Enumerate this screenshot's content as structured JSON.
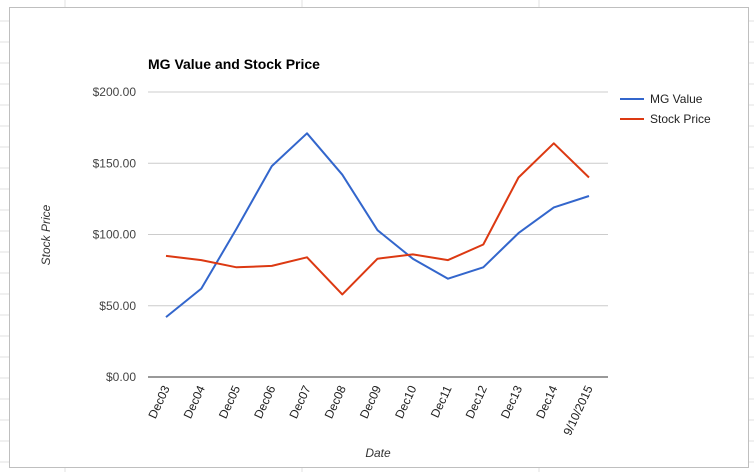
{
  "chart_data": {
    "type": "line",
    "title": "MG Value and Stock Price",
    "xlabel": "Date",
    "ylabel": "Stock Price",
    "categories": [
      "Dec03",
      "Dec04",
      "Dec05",
      "Dec06",
      "Dec07",
      "Dec08",
      "Dec09",
      "Dec10",
      "Dec11",
      "Dec12",
      "Dec13",
      "Dec14",
      "9/10/2015"
    ],
    "ylim": [
      0,
      200
    ],
    "yticks": [
      0,
      50,
      100,
      150,
      200
    ],
    "ytick_labels": [
      "$0.00",
      "$50.00",
      "$100.00",
      "$150.00",
      "$200.00"
    ],
    "grid": true,
    "legend_position": "right",
    "series": [
      {
        "name": "MG Value",
        "color": "#3366cc",
        "values": [
          42,
          62,
          104,
          148,
          171,
          142,
          103,
          83,
          69,
          77,
          101,
          119,
          127
        ]
      },
      {
        "name": "Stock Price",
        "color": "#dc3912",
        "values": [
          85,
          82,
          77,
          78,
          84,
          58,
          83,
          86,
          82,
          93,
          140,
          164,
          140
        ]
      }
    ]
  }
}
